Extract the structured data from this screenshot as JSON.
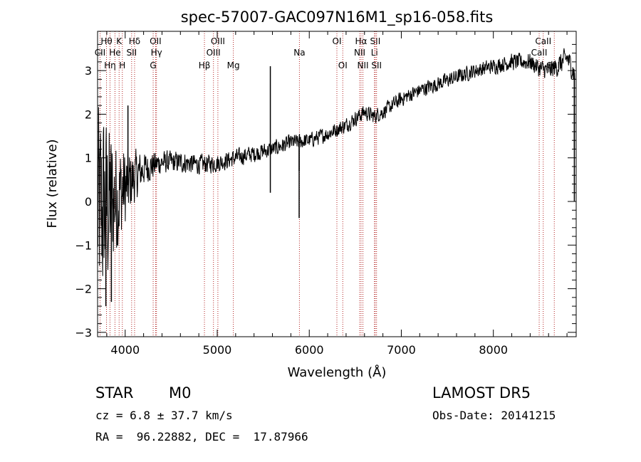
{
  "chart_data": {
    "type": "line",
    "title": "spec-57007-GAC097N16M1_sp16-058.fits",
    "xlabel": "Wavelength (Å)",
    "ylabel": "Flux (relative)",
    "xlim": [
      3700,
      8900
    ],
    "ylim": [
      -3.1,
      3.9
    ],
    "x_ticks": [
      4000,
      5000,
      6000,
      7000,
      8000
    ],
    "x_tick_labels": [
      "4000",
      "5000",
      "6000",
      "7000",
      "8000"
    ],
    "y_ticks": [
      -3,
      -2,
      -1,
      0,
      1,
      2,
      3
    ],
    "y_tick_labels": [
      "−3",
      "−2",
      "−1",
      "0",
      "1",
      "2",
      "3"
    ],
    "grid": false,
    "line_color": "#000000",
    "marker_color": "#b22222",
    "continuum": {
      "x": [
        3700,
        3800,
        3900,
        4000,
        4100,
        4200,
        4400,
        4600,
        4800,
        5000,
        5200,
        5400,
        5600,
        5800,
        6000,
        6200,
        6400,
        6500,
        6600,
        6700,
        6800,
        6900,
        7000,
        7200,
        7400,
        7600,
        7800,
        8000,
        8200,
        8400,
        8500,
        8600,
        8700,
        8800,
        8890
      ],
      "y": [
        -0.3,
        -0.1,
        0.1,
        0.3,
        0.55,
        0.75,
        0.9,
        0.9,
        0.85,
        0.88,
        1.0,
        1.1,
        1.2,
        1.35,
        1.4,
        1.55,
        1.75,
        1.9,
        2.05,
        1.95,
        2.05,
        2.2,
        2.35,
        2.55,
        2.7,
        2.85,
        3.0,
        3.1,
        3.2,
        3.2,
        3.05,
        3.0,
        3.1,
        3.3,
        2.9
      ]
    },
    "noise": {
      "x": [
        3700,
        3800,
        3900,
        4000,
        4100,
        4200,
        4400,
        5000,
        6000,
        7000,
        8000,
        8500,
        8900
      ],
      "y": [
        1.5,
        1.2,
        0.8,
        0.55,
        0.35,
        0.22,
        0.15,
        0.12,
        0.1,
        0.1,
        0.1,
        0.12,
        0.15
      ]
    },
    "spikes": [
      {
        "x": 5577,
        "y": 3.1
      },
      {
        "x": 5577,
        "y": 0.2
      },
      {
        "x": 5890,
        "y": -0.38
      },
      {
        "x": 5890,
        "y": 0.7
      },
      {
        "x": 3850,
        "y": -2.3
      },
      {
        "x": 3790,
        "y": -2.4
      },
      {
        "x": 4030,
        "y": 2.2
      },
      {
        "x": 8880,
        "y": 0.0
      },
      {
        "x": 8880,
        "y": 1.2
      }
    ],
    "line_markers": [
      {
        "label": "Hθ",
        "x": 3797,
        "row": 1
      },
      {
        "label": "K",
        "x": 3934,
        "row": 1
      },
      {
        "label": "Hδ",
        "x": 4102,
        "row": 1
      },
      {
        "label": "OII",
        "x": 4330,
        "row": 1
      },
      {
        "label": "OIII",
        "x": 5007,
        "row": 1
      },
      {
        "label": "OI",
        "x": 6300,
        "row": 1
      },
      {
        "label": "Hα",
        "x": 6563,
        "row": 1
      },
      {
        "label": "SII",
        "x": 6717,
        "row": 1
      },
      {
        "label": "CaII",
        "x": 8542,
        "row": 1
      },
      {
        "label": "CII",
        "x": 3727,
        "row": 2
      },
      {
        "label": "He",
        "x": 3889,
        "row": 2
      },
      {
        "label": "SII",
        "x": 4070,
        "row": 2
      },
      {
        "label": "Hγ",
        "x": 4340,
        "row": 2
      },
      {
        "label": "OIII",
        "x": 4959,
        "row": 2
      },
      {
        "label": "NII",
        "x": 6548,
        "row": 2
      },
      {
        "label": "Li",
        "x": 6708,
        "row": 2
      },
      {
        "label": "CaII",
        "x": 8498,
        "row": 2
      },
      {
        "label": "Hη",
        "x": 3835,
        "row": 3
      },
      {
        "label": "H",
        "x": 3969,
        "row": 3
      },
      {
        "label": "G",
        "x": 4304,
        "row": 3
      },
      {
        "label": "Hβ",
        "x": 4861,
        "row": 3
      },
      {
        "label": "Mg",
        "x": 5175,
        "row": 3
      },
      {
        "label": "Na",
        "x": 5893,
        "row": 2
      },
      {
        "label": "OI",
        "x": 6364,
        "row": 3
      },
      {
        "label": "NII",
        "x": 6583,
        "row": 3
      },
      {
        "label": "SII",
        "x": 6731,
        "row": 3
      },
      {
        "label": "CaII",
        "x": 8662,
        "row": 3
      }
    ]
  },
  "info": {
    "object_class": "STAR",
    "subclass": "M0",
    "survey": "LAMOST DR5",
    "cz": "cz = 6.8 ± 37.7 km/s",
    "obs_date": "Obs-Date: 20141215",
    "coords": "RA =  96.22882, DEC =  17.87966"
  }
}
